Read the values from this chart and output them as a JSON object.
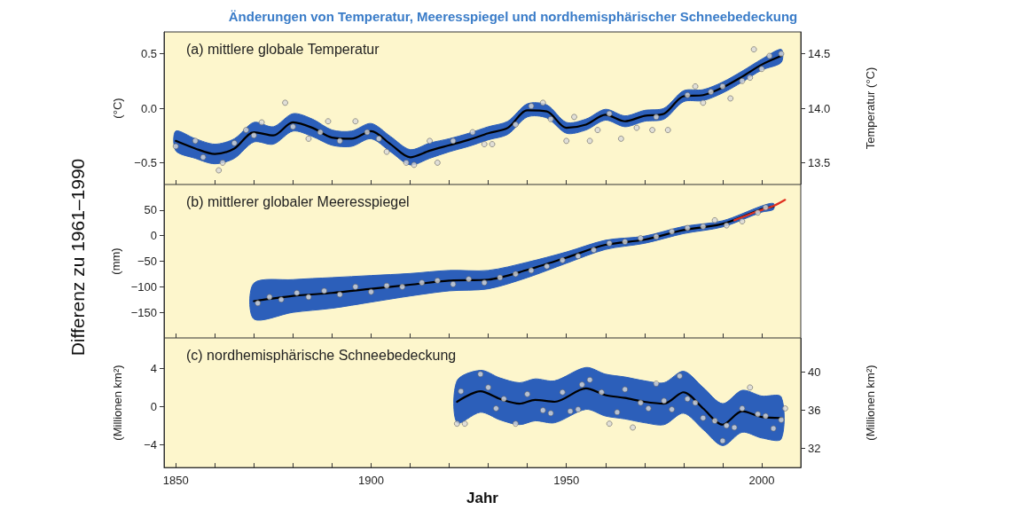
{
  "chart_data": [
    {
      "type": "line",
      "title": "Änderungen von Temperatur, Meeresspiegel und nordhemisphärischer Schneebedeckung",
      "subtitle": "(a) mittlere globale Temperatur",
      "ylabel": "(°C)",
      "y2label": "Temperatur (°C)",
      "xlim": [
        1847,
        2010
      ],
      "xticks": [
        1850,
        {
          "value": 1860,
          "label": null
        },
        {
          "value": 1870,
          "label": null
        },
        {
          "value": 1880,
          "label": null
        },
        {
          "value": 1890,
          "label": null
        },
        1900,
        {
          "value": 1910,
          "label": null
        },
        {
          "value": 1920,
          "label": null
        },
        {
          "value": 1930,
          "label": null
        },
        {
          "value": 1940,
          "label": null
        },
        1950,
        {
          "value": 1960,
          "label": null
        },
        {
          "value": 1970,
          "label": null
        },
        {
          "value": 1980,
          "label": null
        },
        {
          "value": 1990,
          "label": null
        },
        2000
      ],
      "ylim": [
        -0.7,
        0.7
      ],
      "yticks": [
        {
          "value": -0.5,
          "label": "−0.5"
        },
        {
          "value": 0,
          "label": "0.0"
        },
        0.5
      ],
      "y2lim": [
        13.3,
        14.7
      ],
      "y2ticks": [
        13.5,
        {
          "value": 14,
          "label": "14.0"
        },
        14.5
      ],
      "tick_labels": "y",
      "grid": false,
      "series": [
        {
          "type": "line",
          "color": "#000000",
          "marker": "none",
          "x": [
            1850,
            1855,
            1860,
            1865,
            1870,
            1875,
            1880,
            1885,
            1890,
            1895,
            1900,
            1905,
            1910,
            1915,
            1920,
            1925,
            1930,
            1935,
            1940,
            1945,
            1950,
            1955,
            1960,
            1965,
            1970,
            1975,
            1980,
            1985,
            1990,
            1995,
            2000,
            2005
          ],
          "values": [
            -0.3,
            -0.37,
            -0.42,
            -0.37,
            -0.22,
            -0.25,
            -0.13,
            -0.18,
            -0.27,
            -0.28,
            -0.21,
            -0.33,
            -0.45,
            -0.39,
            -0.34,
            -0.29,
            -0.23,
            -0.18,
            -0.02,
            -0.03,
            -0.18,
            -0.15,
            -0.06,
            -0.12,
            -0.07,
            -0.05,
            0.11,
            0.12,
            0.19,
            0.29,
            0.4,
            0.48
          ],
          "lower": [
            -0.39,
            -0.46,
            -0.51,
            -0.46,
            -0.31,
            -0.33,
            -0.21,
            -0.26,
            -0.34,
            -0.35,
            -0.28,
            -0.4,
            -0.52,
            -0.46,
            -0.4,
            -0.35,
            -0.29,
            -0.24,
            -0.08,
            -0.09,
            -0.23,
            -0.2,
            -0.11,
            -0.17,
            -0.12,
            -0.1,
            0.06,
            0.07,
            0.14,
            0.24,
            0.35,
            0.42
          ],
          "upper": [
            -0.21,
            -0.28,
            -0.33,
            -0.28,
            -0.13,
            -0.17,
            -0.05,
            -0.1,
            -0.2,
            -0.21,
            -0.14,
            -0.26,
            -0.38,
            -0.32,
            -0.28,
            -0.23,
            -0.17,
            -0.12,
            0.04,
            0.03,
            -0.13,
            -0.1,
            -0.01,
            -0.07,
            -0.02,
            0,
            0.16,
            0.17,
            0.24,
            0.34,
            0.45,
            0.54
          ]
        },
        {
          "type": "scatter",
          "color": "#d9d9d9",
          "marker": "circle",
          "x": [
            1850,
            1855,
            1857,
            1861,
            1862,
            1865,
            1868,
            1870,
            1872,
            1878,
            1880,
            1884,
            1887,
            1889,
            1892,
            1896,
            1899,
            1902,
            1904,
            1909,
            1911,
            1915,
            1917,
            1921,
            1926,
            1929,
            1931,
            1937,
            1941,
            1944,
            1946,
            1950,
            1952,
            1956,
            1958,
            1961,
            1964,
            1968,
            1972,
            1973,
            1976,
            1981,
            1983,
            1985,
            1987,
            1990,
            1992,
            1995,
            1997,
            1998,
            2000,
            2002,
            2005
          ],
          "values": [
            -0.35,
            -0.3,
            -0.45,
            -0.57,
            -0.5,
            -0.32,
            -0.2,
            -0.25,
            -0.13,
            0.05,
            -0.17,
            -0.28,
            -0.22,
            -0.12,
            -0.3,
            -0.12,
            -0.22,
            -0.28,
            -0.4,
            -0.5,
            -0.52,
            -0.3,
            -0.5,
            -0.3,
            -0.22,
            -0.33,
            -0.33,
            -0.15,
            0.02,
            0.05,
            -0.1,
            -0.3,
            -0.08,
            -0.3,
            -0.2,
            -0.05,
            -0.28,
            -0.18,
            -0.2,
            -0.08,
            -0.2,
            0.12,
            0.2,
            0.05,
            0.15,
            0.2,
            0.09,
            0.25,
            0.28,
            0.54,
            0.36,
            0.48,
            0.5
          ]
        }
      ]
    },
    {
      "type": "line",
      "title": "(b) mittlerer globaler Meeresspiegel",
      "ylabel": "(mm)",
      "annotations": [
        "Differenz zu 1961–1990"
      ],
      "xlim": [
        1847,
        2010
      ],
      "xticks": [
        1850,
        {
          "value": 1860,
          "label": null
        },
        {
          "value": 1870,
          "label": null
        },
        {
          "value": 1880,
          "label": null
        },
        {
          "value": 1890,
          "label": null
        },
        1900,
        {
          "value": 1910,
          "label": null
        },
        {
          "value": 1920,
          "label": null
        },
        {
          "value": 1930,
          "label": null
        },
        {
          "value": 1940,
          "label": null
        },
        1950,
        {
          "value": 1960,
          "label": null
        },
        {
          "value": 1970,
          "label": null
        },
        {
          "value": 1980,
          "label": null
        },
        {
          "value": 1990,
          "label": null
        },
        2000
      ],
      "ylim": [
        -200,
        100
      ],
      "yticks": [
        {
          "value": -150,
          "label": "−150"
        },
        {
          "value": -100,
          "label": "−100"
        },
        {
          "value": -50,
          "label": "−50"
        },
        0,
        50
      ],
      "tick_labels": "y",
      "grid": false,
      "series": [
        {
          "type": "line",
          "color": "#000000",
          "marker": "none",
          "x": [
            1870,
            1880,
            1890,
            1900,
            1910,
            1920,
            1930,
            1940,
            1950,
            1960,
            1970,
            1980,
            1990,
            2000,
            2003
          ],
          "values": [
            -128,
            -118,
            -112,
            -104,
            -96,
            -88,
            -86,
            -67,
            -43,
            -18,
            -8,
            11,
            23,
            52,
            57
          ],
          "lower": [
            -163,
            -150,
            -142,
            -130,
            -118,
            -108,
            -104,
            -82,
            -54,
            -27,
            -15,
            4,
            17,
            46,
            51
          ],
          "upper": [
            -93,
            -86,
            -82,
            -78,
            -74,
            -68,
            -68,
            -52,
            -32,
            -9,
            -1,
            18,
            29,
            58,
            63
          ]
        },
        {
          "type": "line",
          "color": "#e03020",
          "marker": "none",
          "x": [
            1993,
            1998,
            2003,
            2006
          ],
          "values": [
            30,
            45,
            58,
            70
          ]
        },
        {
          "type": "scatter",
          "color": "#d9d9d9",
          "marker": "circle",
          "x": [
            1871,
            1874,
            1877,
            1881,
            1884,
            1888,
            1892,
            1896,
            1900,
            1904,
            1908,
            1913,
            1917,
            1921,
            1925,
            1929,
            1933,
            1937,
            1941,
            1945,
            1949,
            1953,
            1957,
            1961,
            1965,
            1969,
            1973,
            1977,
            1981,
            1985,
            1988,
            1991,
            1995,
            1999,
            2001
          ],
          "values": [
            -132,
            -120,
            -125,
            -112,
            -120,
            -108,
            -115,
            -100,
            -110,
            -98,
            -100,
            -92,
            -88,
            -95,
            -85,
            -92,
            -82,
            -75,
            -68,
            -60,
            -48,
            -40,
            -28,
            -15,
            -12,
            -5,
            -2,
            8,
            15,
            18,
            30,
            20,
            28,
            45,
            55
          ]
        }
      ]
    },
    {
      "type": "line",
      "title": "(c) nordhemisphärische Schneebedeckung",
      "ylabel": "(Millionen km²)",
      "y2label": "(Millionen km²)",
      "xlabel": "Jahr",
      "xlim": [
        1847,
        2010
      ],
      "xticks": [
        1850,
        {
          "value": 1860,
          "label": null
        },
        {
          "value": 1870,
          "label": null
        },
        {
          "value": 1880,
          "label": null
        },
        {
          "value": 1890,
          "label": null
        },
        1900,
        {
          "value": 1910,
          "label": null
        },
        {
          "value": 1920,
          "label": null
        },
        {
          "value": 1930,
          "label": null
        },
        {
          "value": 1940,
          "label": null
        },
        1950,
        {
          "value": 1960,
          "label": null
        },
        {
          "value": 1970,
          "label": null
        },
        {
          "value": 1980,
          "label": null
        },
        {
          "value": 1990,
          "label": null
        },
        2000
      ],
      "ylim": [
        -6.4,
        7.2
      ],
      "yticks": [
        {
          "value": -4,
          "label": "−4"
        },
        0,
        4
      ],
      "y2lim": [
        30,
        43.6
      ],
      "y2ticks": [
        32,
        36,
        40
      ],
      "grid": false,
      "series": [
        {
          "type": "line",
          "color": "#000000",
          "marker": "none",
          "x": [
            1922,
            1928,
            1933,
            1938,
            1942,
            1947,
            1955,
            1960,
            1965,
            1970,
            1975,
            1980,
            1985,
            1990,
            1995,
            2000,
            2005
          ],
          "values": [
            0.5,
            1.6,
            0.8,
            0.3,
            0.7,
            0.5,
            1.9,
            1.2,
            0.9,
            0.5,
            0.3,
            1.5,
            -0.2,
            -1.9,
            -0.5,
            -1.1,
            -1.2
          ],
          "lower": [
            -1.7,
            -0.6,
            -1.4,
            -1.9,
            -1.5,
            -1.7,
            -0.3,
            -1,
            -1.3,
            -1.7,
            -1.9,
            -0.7,
            -2.4,
            -4.1,
            -2.7,
            -3.3,
            -3.4
          ],
          "upper": [
            2.7,
            3.8,
            3,
            2.5,
            2.9,
            2.7,
            4.1,
            3.4,
            3.1,
            2.7,
            2.5,
            3.7,
            2,
            0.3,
            1.7,
            1.1,
            1
          ]
        },
        {
          "type": "scatter",
          "color": "#d9d9d9",
          "marker": "circle",
          "x": [
            1922,
            1923,
            1924,
            1928,
            1930,
            1932,
            1934,
            1937,
            1940,
            1944,
            1946,
            1949,
            1951,
            1953,
            1954,
            1956,
            1959,
            1961,
            1963,
            1965,
            1967,
            1969,
            1971,
            1973,
            1975,
            1977,
            1979,
            1981,
            1983,
            1985,
            1988,
            1990,
            1991,
            1993,
            1995,
            1997,
            1999,
            2001,
            2003,
            2005,
            2006
          ],
          "values": [
            -1.8,
            1.6,
            -1.8,
            3.4,
            2,
            -0.2,
            0.8,
            -1.8,
            1.3,
            -0.4,
            -0.7,
            1.5,
            -0.5,
            -0.3,
            2.3,
            2.8,
            1.5,
            -1.8,
            -0.6,
            1.8,
            -2.2,
            0.4,
            -0.2,
            2.4,
            0.6,
            -0.3,
            3.2,
            0.8,
            0.4,
            -1.2,
            -1.5,
            -3.6,
            -2,
            -2.2,
            -0.2,
            2,
            -0.8,
            -1,
            -2.3,
            -1.4,
            -0.2
          ]
        }
      ]
    }
  ]
}
